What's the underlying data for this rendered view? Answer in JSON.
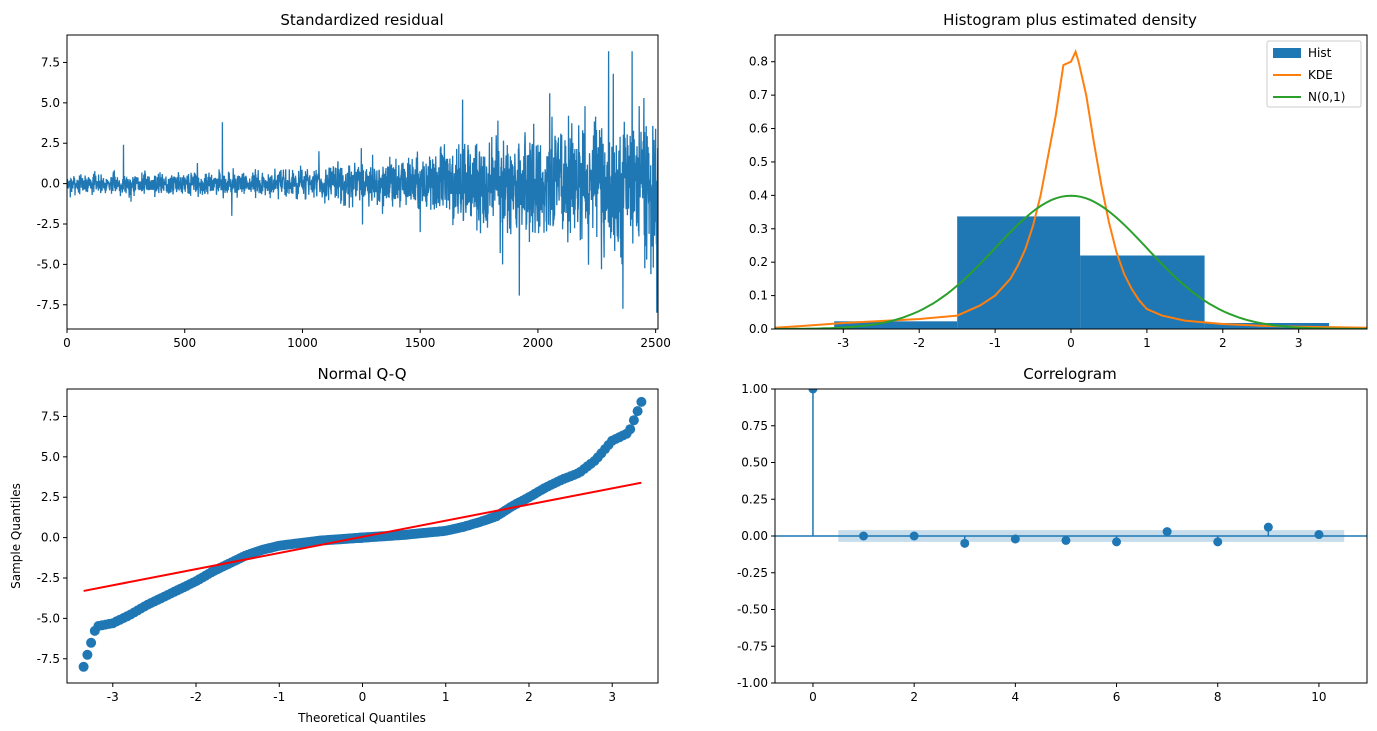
{
  "chart_data": [
    {
      "type": "line",
      "title": "Standardized residual",
      "xlabel": "",
      "ylabel": "",
      "xlim": [
        0,
        2510
      ],
      "ylim": [
        -9,
        9.2
      ],
      "xticks": [
        0,
        500,
        1000,
        1500,
        2000,
        2500
      ],
      "yticks": [
        -7.5,
        -5.0,
        -2.5,
        0.0,
        2.5,
        5.0,
        7.5
      ],
      "xtick_labels": [
        "0",
        "500",
        "1000",
        "1500",
        "2000",
        "2500"
      ],
      "ytick_labels": [
        "-7.5",
        "-5.0",
        "-2.5",
        "0.0",
        "2.5",
        "5.0",
        "7.5"
      ],
      "n_points": 2510,
      "envelope": [
        [
          0,
          0.6
        ],
        [
          600,
          0.8
        ],
        [
          1000,
          1.0
        ],
        [
          1400,
          1.6
        ],
        [
          1800,
          3.0
        ],
        [
          2200,
          3.8
        ],
        [
          2510,
          4.5
        ]
      ],
      "spikes": [
        [
          240,
          2.4
        ],
        [
          660,
          3.8
        ],
        [
          700,
          -2.0
        ],
        [
          1070,
          2.0
        ],
        [
          1250,
          2.2
        ],
        [
          1500,
          -3.0
        ],
        [
          1680,
          5.2
        ],
        [
          1830,
          3.9
        ],
        [
          1840,
          -4.3
        ],
        [
          1850,
          -5.0
        ],
        [
          1860,
          -2.0
        ],
        [
          2000,
          2.4
        ],
        [
          2050,
          5.6
        ],
        [
          2130,
          4.2
        ],
        [
          2180,
          -3.5
        ],
        [
          2200,
          4.8
        ],
        [
          2270,
          -5.3
        ],
        [
          2300,
          8.2
        ],
        [
          2320,
          6.8
        ],
        [
          2350,
          -3.4
        ],
        [
          2400,
          8.2
        ],
        [
          2430,
          4.8
        ],
        [
          2450,
          5.3
        ],
        [
          2480,
          -5.6
        ],
        [
          2490,
          -5.2
        ],
        [
          2505,
          -8.0
        ]
      ],
      "color": "#1f77b4"
    },
    {
      "type": "bar",
      "title": "Histogram plus estimated density",
      "xlim": [
        -3.9,
        3.9
      ],
      "ylim": [
        0,
        0.88
      ],
      "xticks": [
        -3,
        -2,
        -1,
        0,
        1,
        2,
        3
      ],
      "yticks": [
        0.0,
        0.1,
        0.2,
        0.3,
        0.4,
        0.5,
        0.6,
        0.7,
        0.8
      ],
      "xtick_labels": [
        "-3",
        "-2",
        "-1",
        "0",
        "1",
        "2",
        "3"
      ],
      "ytick_labels": [
        "0.0",
        "0.1",
        "0.2",
        "0.3",
        "0.4",
        "0.5",
        "0.6",
        "0.7",
        "0.8"
      ],
      "bins": [
        {
          "left": -3.12,
          "right": -1.5,
          "height": 0.023
        },
        {
          "left": -1.5,
          "right": 0.12,
          "height": 0.337
        },
        {
          "left": 0.12,
          "right": 1.76,
          "height": 0.22
        },
        {
          "left": 1.76,
          "right": 3.4,
          "height": 0.018
        }
      ],
      "kde": {
        "x": [
          -3.9,
          -3.5,
          -3.0,
          -2.5,
          -2.0,
          -1.5,
          -1.2,
          -1.0,
          -0.8,
          -0.7,
          -0.6,
          -0.5,
          -0.4,
          -0.3,
          -0.2,
          -0.1,
          0.0,
          0.06,
          0.1,
          0.2,
          0.3,
          0.4,
          0.5,
          0.6,
          0.7,
          0.8,
          0.9,
          1.0,
          1.2,
          1.5,
          2.0,
          2.5,
          3.0,
          3.5,
          3.9
        ],
        "y": [
          0.004,
          0.01,
          0.018,
          0.024,
          0.03,
          0.04,
          0.07,
          0.1,
          0.15,
          0.19,
          0.24,
          0.31,
          0.4,
          0.52,
          0.64,
          0.79,
          0.8,
          0.83,
          0.8,
          0.7,
          0.56,
          0.43,
          0.32,
          0.23,
          0.165,
          0.12,
          0.085,
          0.06,
          0.04,
          0.025,
          0.015,
          0.01,
          0.007,
          0.005,
          0.004
        ]
      },
      "normal_pdf": "N(0,1)",
      "legend": [
        {
          "label": "Hist",
          "color": "#1f77b4",
          "kind": "patch"
        },
        {
          "label": "KDE",
          "color": "#ff7f0e",
          "kind": "line"
        },
        {
          "label": "N(0,1)",
          "color": "#2ca02c",
          "kind": "line"
        }
      ],
      "legend_position": "top-right"
    },
    {
      "type": "scatter",
      "title": "Normal Q-Q",
      "xlabel": "Theoretical Quantiles",
      "ylabel": "Sample Quantiles",
      "xlim": [
        -3.55,
        3.55
      ],
      "ylim": [
        -9.0,
        9.2
      ],
      "xticks": [
        -3,
        -2,
        -1,
        0,
        1,
        2,
        3
      ],
      "yticks": [
        -7.5,
        -5.0,
        -2.5,
        0.0,
        2.5,
        5.0,
        7.5
      ],
      "xtick_labels": [
        "-3",
        "-2",
        "-1",
        "0",
        "1",
        "2",
        "3"
      ],
      "ytick_labels": [
        "-7.5",
        "-5.0",
        "-2.5",
        "0.0",
        "2.5",
        "5.0",
        "7.5"
      ],
      "curve_knots": [
        [
          -3.35,
          -8.0
        ],
        [
          -3.2,
          -5.5
        ],
        [
          -3.1,
          -5.4
        ],
        [
          -3.0,
          -5.3
        ],
        [
          -2.8,
          -4.8
        ],
        [
          -2.6,
          -4.2
        ],
        [
          -2.4,
          -3.7
        ],
        [
          -2.2,
          -3.2
        ],
        [
          -2.0,
          -2.7
        ],
        [
          -1.8,
          -2.1
        ],
        [
          -1.6,
          -1.6
        ],
        [
          -1.4,
          -1.1
        ],
        [
          -1.2,
          -0.75
        ],
        [
          -1.0,
          -0.5
        ],
        [
          -0.5,
          -0.18
        ],
        [
          0.0,
          0.0
        ],
        [
          0.5,
          0.17
        ],
        [
          1.0,
          0.42
        ],
        [
          1.2,
          0.65
        ],
        [
          1.4,
          0.95
        ],
        [
          1.6,
          1.3
        ],
        [
          1.8,
          1.95
        ],
        [
          2.0,
          2.5
        ],
        [
          2.2,
          3.1
        ],
        [
          2.4,
          3.6
        ],
        [
          2.6,
          4.0
        ],
        [
          2.8,
          4.8
        ],
        [
          3.0,
          6.0
        ],
        [
          3.2,
          6.5
        ],
        [
          3.35,
          8.4
        ]
      ],
      "reference_line": {
        "x": [
          -3.35,
          3.35
        ],
        "y": [
          -3.3,
          3.4
        ],
        "color": "#ff0000"
      },
      "color": "#1f77b4"
    },
    {
      "type": "scatter",
      "title": "Correlogram",
      "xlim": [
        -0.75,
        10.95
      ],
      "ylim": [
        -1.0,
        1.0
      ],
      "xticks": [
        0,
        2,
        4,
        6,
        8,
        10
      ],
      "yticks": [
        -1.0,
        -0.75,
        -0.5,
        -0.25,
        0.0,
        0.25,
        0.5,
        0.75,
        1.0
      ],
      "xtick_labels": [
        "0",
        "2",
        "4",
        "6",
        "8",
        "10"
      ],
      "ytick_labels": [
        "-1.00",
        "-0.75",
        "-0.50",
        "-0.25",
        "0.00",
        "0.25",
        "0.50",
        "0.75",
        "1.00"
      ],
      "lags": [
        0,
        1,
        2,
        3,
        4,
        5,
        6,
        7,
        8,
        9,
        10
      ],
      "acf": [
        1.0,
        0.0,
        0.0,
        -0.05,
        -0.02,
        -0.03,
        -0.04,
        0.03,
        -0.04,
        0.06,
        0.01
      ],
      "confidence_band": {
        "from_lag": 0.5,
        "to_lag": 10.5,
        "lower": -0.04,
        "upper": 0.04
      },
      "color": "#1f77b4"
    }
  ]
}
